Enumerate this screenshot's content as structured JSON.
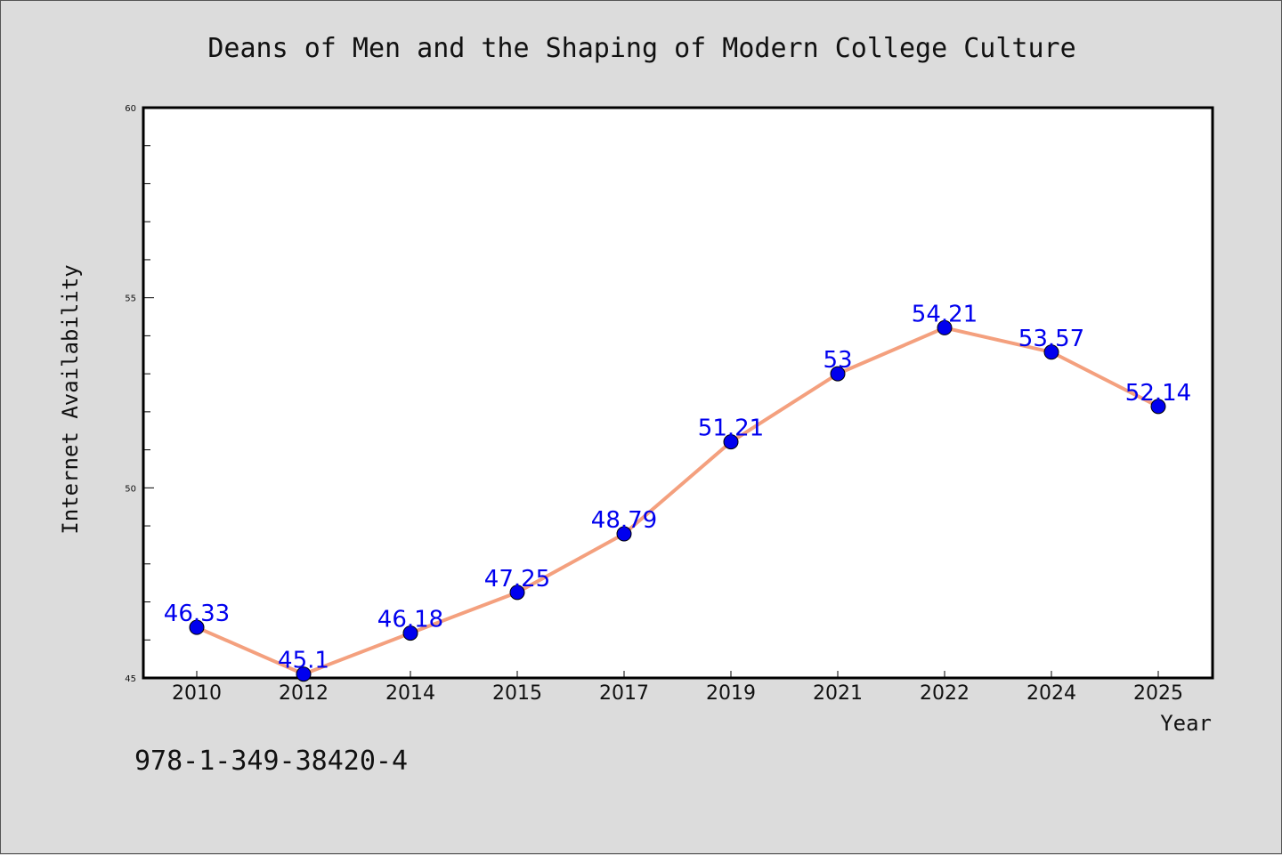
{
  "chart_data": {
    "type": "line",
    "title": "Deans of Men and the Shaping of Modern College Culture",
    "xlabel": "Year",
    "ylabel": "Internet Availability",
    "categories": [
      "2010",
      "2012",
      "2014",
      "2015",
      "2017",
      "2019",
      "2021",
      "2022",
      "2024",
      "2025"
    ],
    "series": [
      {
        "values": [
          46.33,
          45.1,
          46.18,
          47.25,
          48.79,
          51.21,
          53,
          54.21,
          53.57,
          52.14
        ],
        "labels": [
          "46.33",
          "45.1",
          "46.18",
          "47.25",
          "48.79",
          "51.21",
          "53",
          "54.21",
          "53.57",
          "52.14"
        ]
      }
    ],
    "ylim": [
      45,
      60
    ],
    "yticks": [
      "45",
      "50",
      "55",
      "60"
    ],
    "grid": false,
    "line_color": "#f4a07e",
    "marker_color": "#0000ee",
    "label_color": "#0000ee"
  },
  "footer": {
    "isbn": "978-1-349-38420-4"
  }
}
